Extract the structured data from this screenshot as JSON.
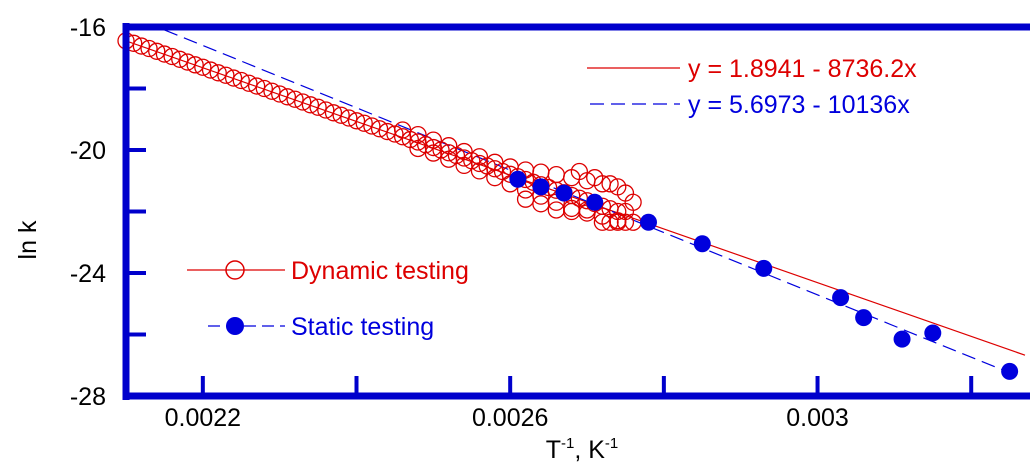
{
  "chart_data": {
    "type": "scatter",
    "xlabel": "T",
    "xlabel_sup1": "-1",
    "xlabel_mid": ", K",
    "xlabel_sup2": "-1",
    "ylabel": "ln k",
    "xlim": [
      0.0021,
      0.00327
    ],
    "ylim": [
      -28,
      -16
    ],
    "x_ticks": [
      {
        "value": 0.0022,
        "label": "0.0022"
      },
      {
        "value": 0.0026,
        "label": "0.0026"
      },
      {
        "value": 0.003,
        "label": "0.003"
      }
    ],
    "x_minor_ticks": [
      0.0024,
      0.0028,
      0.0032
    ],
    "y_ticks": [
      {
        "value": -16,
        "label": "-16"
      },
      {
        "value": -20,
        "label": "-20"
      },
      {
        "value": -24,
        "label": "-24"
      },
      {
        "value": -28,
        "label": "-28"
      }
    ],
    "y_minor_ticks": [
      -18,
      -22,
      -26
    ],
    "grid": false,
    "legend_position": "bottom-left",
    "series": [
      {
        "name": "Dynamic testing",
        "marker": "open-circle",
        "color": "#dd0000",
        "points": [
          [
            0.0021,
            -16.45
          ],
          [
            0.00211,
            -16.53
          ],
          [
            0.00212,
            -16.62
          ],
          [
            0.00213,
            -16.7
          ],
          [
            0.00214,
            -16.79
          ],
          [
            0.00215,
            -16.88
          ],
          [
            0.00216,
            -16.96
          ],
          [
            0.00217,
            -17.05
          ],
          [
            0.00218,
            -17.14
          ],
          [
            0.00219,
            -17.23
          ],
          [
            0.0022,
            -17.31
          ],
          [
            0.00221,
            -17.4
          ],
          [
            0.00222,
            -17.49
          ],
          [
            0.00223,
            -17.57
          ],
          [
            0.00224,
            -17.66
          ],
          [
            0.00225,
            -17.74
          ],
          [
            0.00226,
            -17.83
          ],
          [
            0.00227,
            -17.92
          ],
          [
            0.00228,
            -18.0
          ],
          [
            0.00229,
            -18.09
          ],
          [
            0.0023,
            -18.18
          ],
          [
            0.00231,
            -18.27
          ],
          [
            0.00232,
            -18.35
          ],
          [
            0.00233,
            -18.44
          ],
          [
            0.00234,
            -18.53
          ],
          [
            0.00235,
            -18.61
          ],
          [
            0.00236,
            -18.7
          ],
          [
            0.00237,
            -18.79
          ],
          [
            0.00238,
            -18.87
          ],
          [
            0.00239,
            -18.96
          ],
          [
            0.0024,
            -19.05
          ],
          [
            0.00241,
            -19.13
          ],
          [
            0.00242,
            -19.22
          ],
          [
            0.00243,
            -19.31
          ],
          [
            0.00244,
            -19.4
          ],
          [
            0.00245,
            -19.48
          ],
          [
            0.00246,
            -19.57
          ],
          [
            0.00247,
            -19.66
          ],
          [
            0.00248,
            -19.74
          ],
          [
            0.00249,
            -19.83
          ],
          [
            0.0025,
            -19.92
          ],
          [
            0.00251,
            -20.0
          ],
          [
            0.00252,
            -20.09
          ],
          [
            0.00253,
            -20.18
          ],
          [
            0.00254,
            -20.26
          ],
          [
            0.00255,
            -20.35
          ],
          [
            0.00256,
            -20.44
          ],
          [
            0.00257,
            -20.52
          ],
          [
            0.00258,
            -20.61
          ],
          [
            0.00259,
            -20.7
          ],
          [
            0.0026,
            -20.79
          ],
          [
            0.00261,
            -20.87
          ],
          [
            0.00262,
            -20.96
          ],
          [
            0.00263,
            -21.05
          ],
          [
            0.00264,
            -21.13
          ],
          [
            0.00265,
            -21.22
          ],
          [
            0.00266,
            -21.31
          ],
          [
            0.00267,
            -21.39
          ],
          [
            0.00268,
            -21.48
          ],
          [
            0.00269,
            -21.57
          ],
          [
            0.0027,
            -21.65
          ],
          [
            0.00271,
            -21.74
          ],
          [
            0.00272,
            -21.83
          ],
          [
            0.00273,
            -21.91
          ],
          [
            0.00274,
            -22.0
          ],
          [
            0.00246,
            -19.35
          ],
          [
            0.00248,
            -19.5
          ],
          [
            0.0025,
            -19.68
          ],
          [
            0.00252,
            -19.86
          ],
          [
            0.00254,
            -20.05
          ],
          [
            0.00256,
            -20.22
          ],
          [
            0.00258,
            -20.4
          ],
          [
            0.0026,
            -20.55
          ],
          [
            0.00262,
            -20.65
          ],
          [
            0.00264,
            -20.72
          ],
          [
            0.00266,
            -20.8
          ],
          [
            0.00268,
            -20.9
          ],
          [
            0.0027,
            -21.0
          ],
          [
            0.00272,
            -21.1
          ],
          [
            0.00274,
            -21.2
          ],
          [
            0.00248,
            -19.95
          ],
          [
            0.0025,
            -20.1
          ],
          [
            0.00252,
            -20.3
          ],
          [
            0.00254,
            -20.5
          ],
          [
            0.00256,
            -20.68
          ],
          [
            0.00258,
            -20.9
          ],
          [
            0.0026,
            -21.1
          ],
          [
            0.00262,
            -21.3
          ],
          [
            0.00264,
            -21.5
          ],
          [
            0.00266,
            -21.7
          ],
          [
            0.00268,
            -21.9
          ],
          [
            0.0027,
            -22.05
          ],
          [
            0.00272,
            -22.15
          ],
          [
            0.00274,
            -22.3
          ],
          [
            0.00275,
            -22.0
          ],
          [
            0.00262,
            -21.6
          ],
          [
            0.00264,
            -21.75
          ],
          [
            0.00266,
            -21.95
          ],
          [
            0.00268,
            -22.0
          ],
          [
            0.0027,
            -21.95
          ],
          [
            0.00272,
            -22.35
          ],
          [
            0.00273,
            -22.35
          ],
          [
            0.00274,
            -22.35
          ],
          [
            0.00275,
            -22.35
          ],
          [
            0.00276,
            -22.35
          ],
          [
            0.00269,
            -20.7
          ],
          [
            0.00271,
            -20.9
          ],
          [
            0.00273,
            -21.1
          ],
          [
            0.00275,
            -21.4
          ],
          [
            0.00276,
            -21.7
          ]
        ]
      },
      {
        "name": "Static testing",
        "marker": "filled-circle",
        "color": "#0000dd",
        "points": [
          [
            0.00261,
            -20.95
          ],
          [
            0.00264,
            -21.2
          ],
          [
            0.00267,
            -21.4
          ],
          [
            0.00271,
            -21.7
          ],
          [
            0.00278,
            -22.35
          ],
          [
            0.00285,
            -23.05
          ],
          [
            0.00293,
            -23.85
          ],
          [
            0.00303,
            -24.8
          ],
          [
            0.00306,
            -25.45
          ],
          [
            0.00311,
            -26.15
          ],
          [
            0.00315,
            -25.95
          ],
          [
            0.00325,
            -27.2
          ]
        ]
      }
    ],
    "fits": [
      {
        "label": "y = 1.8941 - 8736.2x",
        "intercept": 1.8941,
        "slope": -8736.2,
        "color": "#dd0000",
        "style": "solid"
      },
      {
        "label": "y = 5.6973 - 10136x",
        "intercept": 5.6973,
        "slope": -10136,
        "color": "#0000dd",
        "style": "dashed"
      }
    ]
  }
}
